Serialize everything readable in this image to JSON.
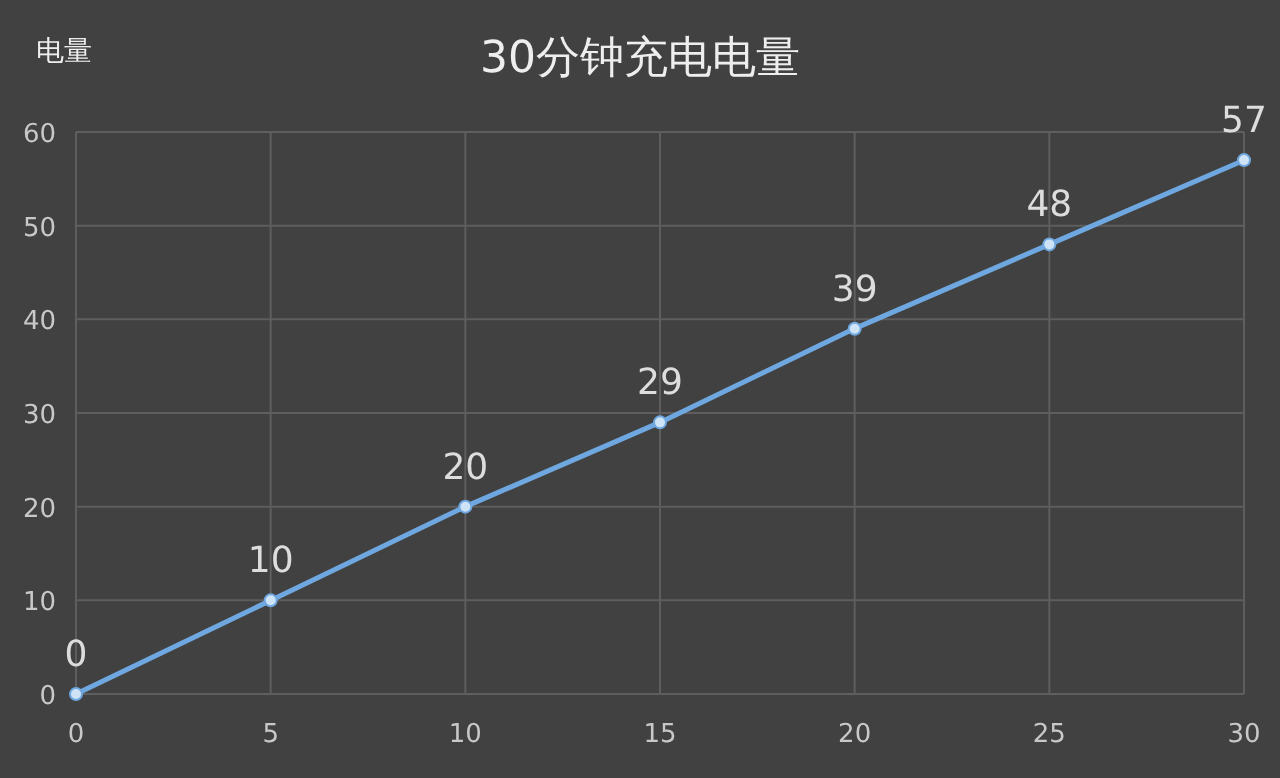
{
  "chart_data": {
    "type": "line",
    "title": "30分钟充电电量",
    "ylabel": "电量",
    "x": [
      0,
      5,
      10,
      15,
      20,
      25,
      30
    ],
    "series": [
      {
        "color": "#6fa8e0",
        "values": [
          0,
          10,
          20,
          29,
          39,
          48,
          57
        ]
      }
    ],
    "xlim": [
      0,
      30
    ],
    "ylim": [
      0,
      60
    ],
    "xticks": [
      0,
      5,
      10,
      15,
      20,
      25,
      30
    ],
    "yticks": [
      0,
      10,
      20,
      30,
      40,
      50,
      60
    ],
    "grid": true,
    "data_labels": true,
    "marker": "circle",
    "line_style": "solid"
  }
}
